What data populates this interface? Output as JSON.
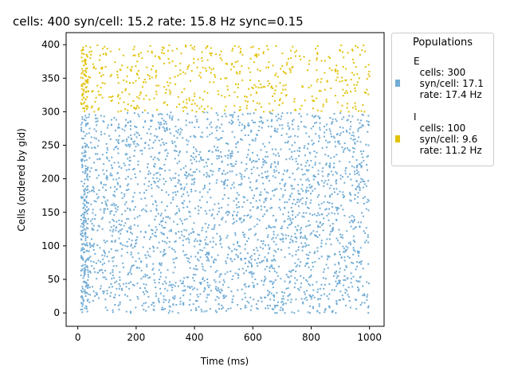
{
  "chart_data": {
    "type": "scatter",
    "title": "cells: 400   syn/cell: 15.2   rate: 15.8 Hz    sync=0.15",
    "xlabel": "Time (ms)",
    "ylabel": "Cells (ordered by gid)",
    "xlim": [
      -40,
      1050
    ],
    "ylim": [
      -20,
      418
    ],
    "xticks": [
      0,
      200,
      400,
      600,
      800,
      1000
    ],
    "yticks": [
      0,
      50,
      100,
      150,
      200,
      250,
      300,
      350,
      400
    ],
    "grid": false,
    "legend_placement": "outside-right",
    "legend_title": "Populations",
    "time_range": [
      10,
      1000
    ],
    "series": [
      {
        "name": "E",
        "color": "#72acd4",
        "gid_range": [
          0,
          299
        ],
        "cells": 300,
        "syn_per_cell": 17.1,
        "rate_hz": 17.4,
        "legend_lines": [
          "E",
          "  cells: 300",
          "  syn/cell: 17.1",
          "  rate: 17.4 Hz"
        ]
      },
      {
        "name": "I",
        "color": "#e2c20c",
        "gid_range": [
          300,
          399
        ],
        "cells": 100,
        "syn_per_cell": 9.6,
        "rate_hz": 11.2,
        "legend_lines": [
          "I",
          "  cells: 100",
          "  syn/cell: 9.6",
          "  rate: 11.2 Hz"
        ]
      }
    ]
  }
}
